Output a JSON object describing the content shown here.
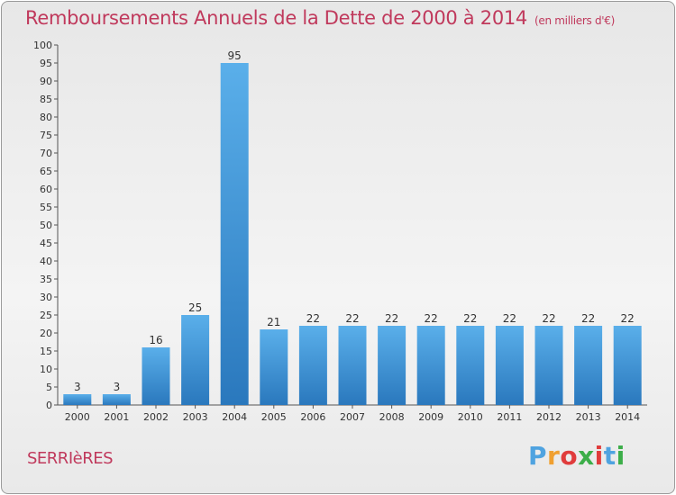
{
  "header": {
    "title": "Remboursements Annuels de la Dette de 2000 à 2014",
    "subtitle": "(en milliers d'€)"
  },
  "footer": {
    "city": "SERRIèRES",
    "logo": {
      "letters": [
        "P",
        "r",
        "o",
        "x",
        "i",
        "t",
        "i"
      ],
      "colors": [
        "#4fa3e0",
        "#f0a030",
        "#e03c3c",
        "#3cae49",
        "#e03c3c",
        "#4fa3e0",
        "#3cae49"
      ]
    }
  },
  "chart_data": {
    "type": "bar",
    "categories": [
      "2000",
      "2001",
      "2002",
      "2003",
      "2004",
      "2005",
      "2006",
      "2007",
      "2008",
      "2009",
      "2010",
      "2011",
      "2012",
      "2013",
      "2014"
    ],
    "values": [
      3,
      3,
      16,
      25,
      95,
      21,
      22,
      22,
      22,
      22,
      22,
      22,
      22,
      22,
      22
    ],
    "title": "Remboursements Annuels de la Dette de 2000 à 2014",
    "ylim": [
      0,
      100
    ],
    "yticks": [
      0,
      5,
      10,
      15,
      20,
      25,
      30,
      35,
      40,
      45,
      50,
      55,
      60,
      65,
      70,
      75,
      80,
      85,
      90,
      95,
      100
    ],
    "grid": false,
    "bar_color": "#3d8fd6"
  }
}
